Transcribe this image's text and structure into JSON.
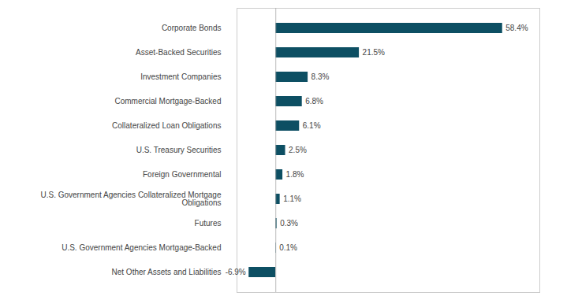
{
  "chart_data": {
    "type": "bar",
    "orientation": "horizontal",
    "categories": [
      "Corporate Bonds",
      "Asset-Backed Securities",
      "Investment Companies",
      "Commercial Mortgage-Backed",
      "Collateralized Loan Obligations",
      "U.S. Treasury Securities",
      "Foreign Governmental",
      "U.S. Government Agencies Collateralized Mortgage\nObligations",
      "Futures",
      "U.S. Government Agencies Mortgage-Backed",
      "Net Other Assets and Liabilities"
    ],
    "values": [
      58.4,
      21.5,
      8.3,
      6.8,
      6.1,
      2.5,
      1.8,
      1.1,
      0.3,
      0.1,
      -6.9
    ],
    "value_labels": [
      "58.4%",
      "21.5%",
      "8.3%",
      "6.8%",
      "6.1%",
      "2.5%",
      "1.8%",
      "1.1%",
      "0.3%",
      "0.1%",
      "-6.9%"
    ],
    "data_labels": true,
    "color": "#0d4f63",
    "xlim": [
      -10,
      68
    ],
    "xticks": [],
    "tick_labels": "y",
    "grid": false
  }
}
